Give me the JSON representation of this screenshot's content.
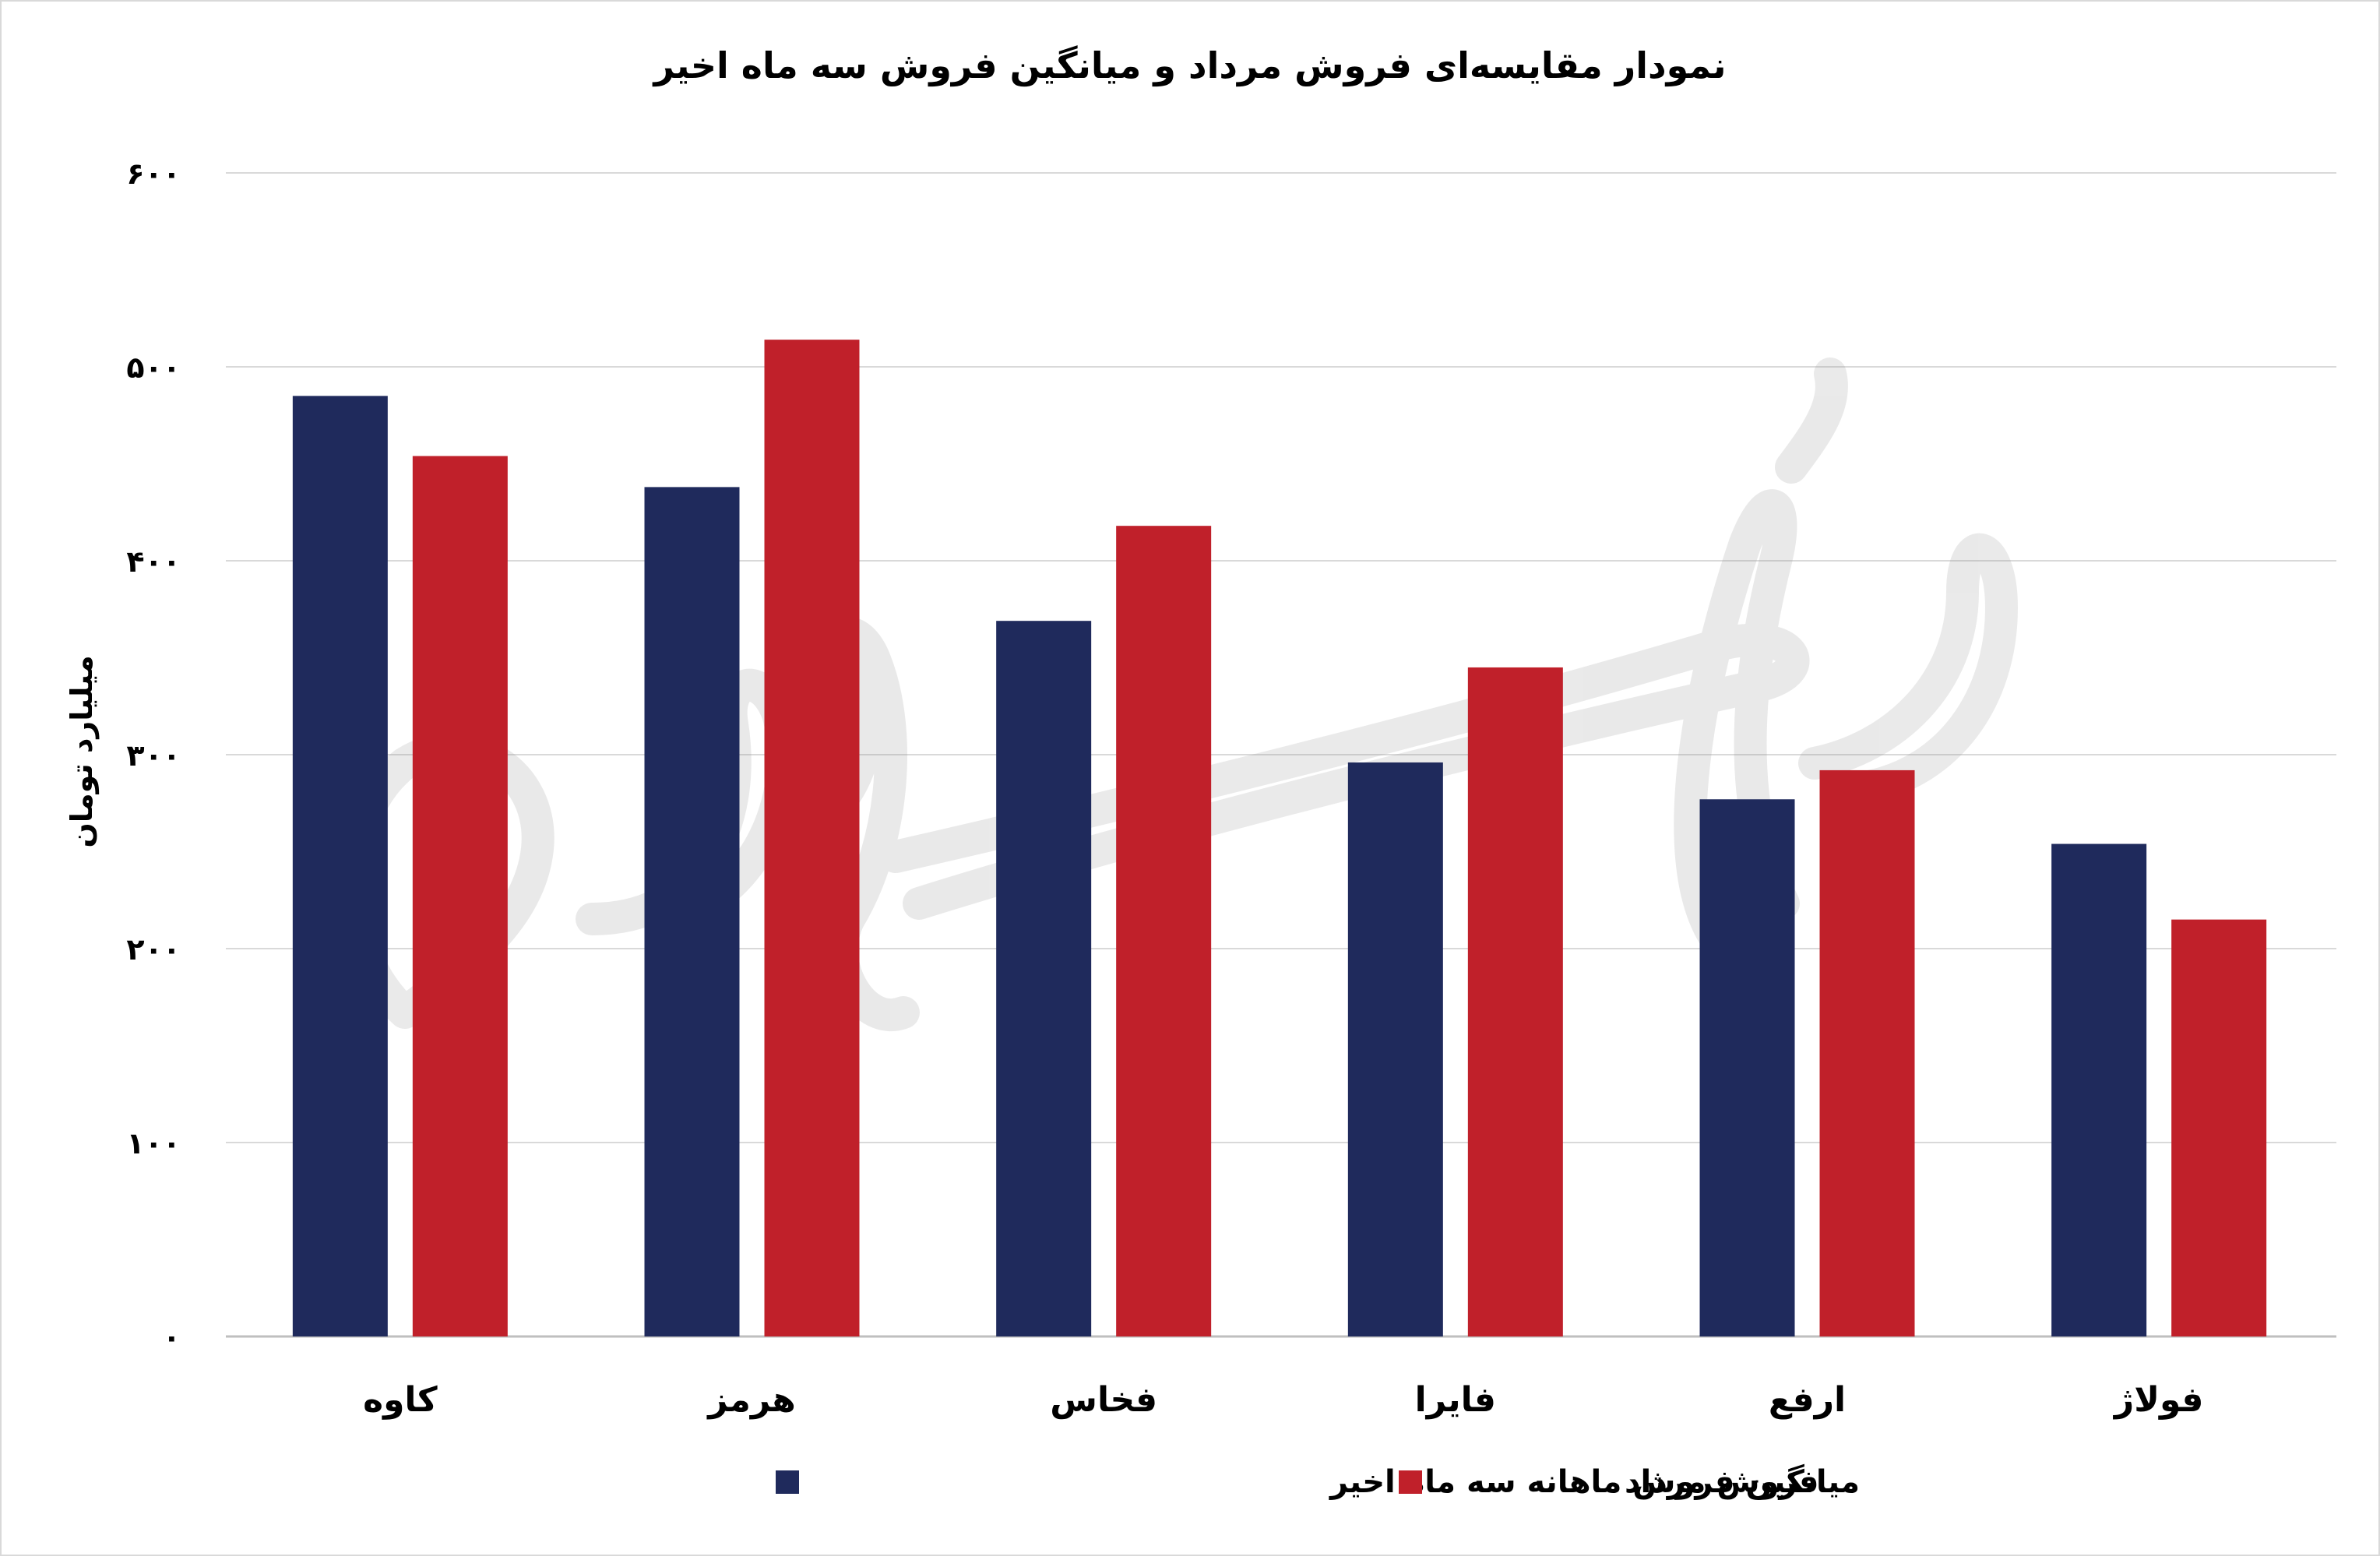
{
  "chart_data": {
    "type": "bar",
    "title": "نمودار مقایسه‌ای فروش مرداد و میانگین فروش سه ماه اخیر",
    "ylabel": "میلیارد تومان",
    "xlabel": "",
    "ylim": [
      0,
      600
    ],
    "yticks": [
      "۰",
      "۱۰۰",
      "۲۰۰",
      "۳۰۰",
      "۴۰۰",
      "۵۰۰",
      "۶۰۰"
    ],
    "ytick_values": [
      0,
      100,
      200,
      300,
      400,
      500,
      600
    ],
    "categories": [
      "کاوه",
      "هرمز",
      "فخاس",
      "فایرا",
      "ارفع",
      "فولاژ"
    ],
    "series": [
      {
        "name": "میانگین فروش ماهانه سه ماه اخیر",
        "color": "#1f2a5c",
        "values": [
          485,
          438,
          369,
          296,
          277,
          254
        ]
      },
      {
        "name": "فروش مرداد",
        "color": "#c0202a",
        "values": [
          454,
          514,
          418,
          345,
          292,
          215
        ]
      }
    ],
    "grid": true,
    "legend": "bottom-center",
    "watermark": "دنیای بورس"
  }
}
